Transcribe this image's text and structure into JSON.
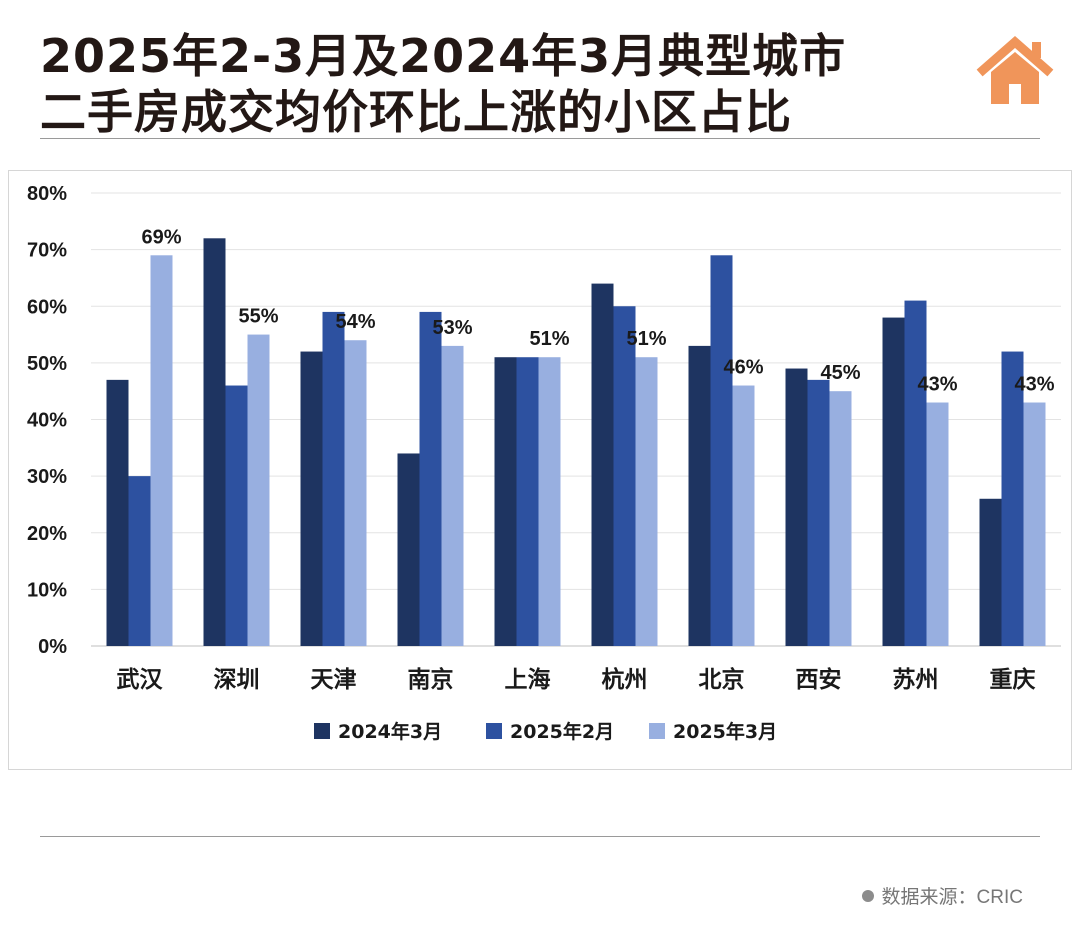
{
  "title": {
    "line1": "2025年2-3月及2024年3月典型城市",
    "line2": "二手房成交均价环比上涨的小区占比"
  },
  "logo": {
    "icon": "house-icon",
    "color": "#f0955a"
  },
  "source": {
    "text": "数据来源：CRIC"
  },
  "colors": {
    "s2024_03": "#1e3461",
    "s2025_02": "#2d51a0",
    "s2025_03": "#98afe0"
  },
  "chart_data": {
    "type": "bar",
    "categories": [
      "武汉",
      "深圳",
      "天津",
      "南京",
      "上海",
      "杭州",
      "北京",
      "西安",
      "苏州",
      "重庆"
    ],
    "series": [
      {
        "name": "2024年3月",
        "values": [
          47,
          72,
          52,
          34,
          51,
          64,
          53,
          49,
          58,
          26
        ]
      },
      {
        "name": "2025年2月",
        "values": [
          30,
          46,
          59,
          59,
          51,
          60,
          69,
          47,
          61,
          52
        ]
      },
      {
        "name": "2025年3月",
        "values": [
          69,
          55,
          54,
          53,
          51,
          51,
          46,
          45,
          43,
          43
        ]
      }
    ],
    "data_labels": [
      "69%",
      "55%",
      "54%",
      "53%",
      "51%",
      "51%",
      "46%",
      "45%",
      "43%",
      "43%"
    ],
    "yticks": [
      "0%",
      "10%",
      "20%",
      "30%",
      "40%",
      "50%",
      "60%",
      "70%",
      "80%"
    ],
    "ylim": [
      0,
      80
    ],
    "grid": true,
    "legend_position": "bottom"
  }
}
